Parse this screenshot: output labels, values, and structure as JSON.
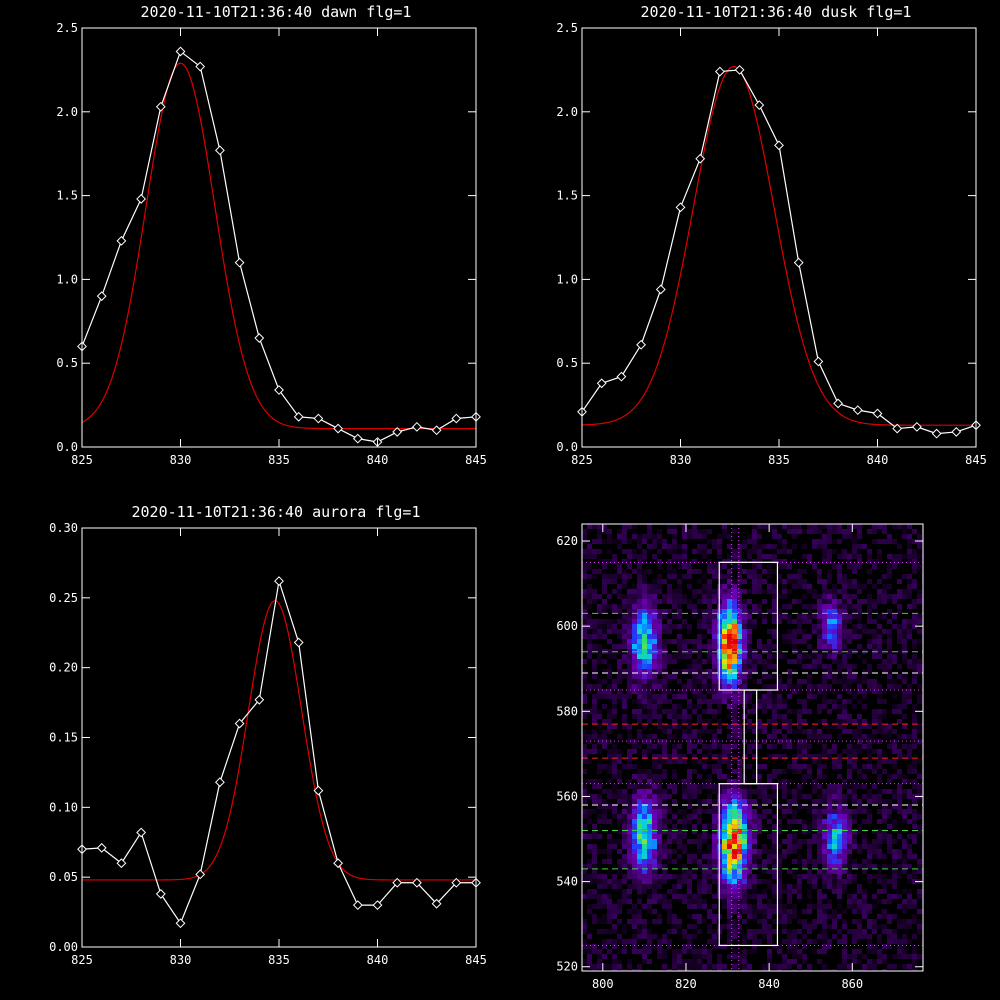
{
  "panels": [
    {
      "title": "2020-11-10T21:36:40 dawn flg=1",
      "chart_data": {
        "type": "line",
        "xlim": [
          825,
          845
        ],
        "ylim": [
          0.0,
          2.5
        ],
        "xticks": [
          825,
          830,
          835,
          840,
          845
        ],
        "yticks": [
          0.0,
          0.5,
          1.0,
          1.5,
          2.0,
          2.5
        ],
        "xtick_labels": [
          "825",
          "830",
          "835",
          "840",
          "845"
        ],
        "ytick_labels": [
          "0.0",
          "0.5",
          "1.0",
          "1.5",
          "2.0",
          "2.5"
        ],
        "series": [
          {
            "color": "#ffffff",
            "marker": "diamond",
            "x": [
              825,
              826,
              827,
              828,
              829,
              830,
              831,
              832,
              833,
              834,
              835,
              836,
              837,
              838,
              839,
              840,
              841,
              842,
              843,
              844,
              845
            ],
            "y": [
              0.6,
              0.9,
              1.23,
              1.48,
              2.03,
              2.36,
              2.27,
              1.77,
              1.1,
              0.65,
              0.34,
              0.18,
              0.17,
              0.11,
              0.05,
              0.03,
              0.09,
              0.12,
              0.1,
              0.17,
              0.18
            ]
          },
          {
            "color": "#dd0000",
            "model": "gaussian",
            "amplitude": 2.18,
            "center": 830.0,
            "sigma": 1.75,
            "offset": 0.11
          }
        ]
      }
    },
    {
      "title": "2020-11-10T21:36:40 dusk flg=1",
      "chart_data": {
        "type": "line",
        "xlim": [
          825,
          845
        ],
        "ylim": [
          0.0,
          2.5
        ],
        "xticks": [
          825,
          830,
          835,
          840,
          845
        ],
        "yticks": [
          0.0,
          0.5,
          1.0,
          1.5,
          2.0,
          2.5
        ],
        "xtick_labels": [
          "825",
          "830",
          "835",
          "840",
          "845"
        ],
        "ytick_labels": [
          "0.0",
          "0.5",
          "1.0",
          "1.5",
          "2.0",
          "2.5"
        ],
        "series": [
          {
            "color": "#ffffff",
            "marker": "diamond",
            "x": [
              825,
              826,
              827,
              828,
              829,
              830,
              831,
              832,
              833,
              834,
              835,
              836,
              837,
              838,
              839,
              840,
              841,
              842,
              843,
              844,
              845
            ],
            "y": [
              0.21,
              0.38,
              0.42,
              0.61,
              0.94,
              1.43,
              1.72,
              2.24,
              2.25,
              2.04,
              1.8,
              1.1,
              0.51,
              0.26,
              0.22,
              0.2,
              0.11,
              0.12,
              0.08,
              0.09,
              0.13
            ]
          },
          {
            "color": "#dd0000",
            "model": "gaussian",
            "amplitude": 2.14,
            "center": 832.7,
            "sigma": 2.05,
            "offset": 0.13
          }
        ]
      }
    },
    {
      "title": "2020-11-10T21:36:40 aurora flg=1",
      "chart_data": {
        "type": "line",
        "xlim": [
          825,
          845
        ],
        "ylim": [
          0.0,
          0.3
        ],
        "xticks": [
          825,
          830,
          835,
          840,
          845
        ],
        "yticks": [
          0.0,
          0.05,
          0.1,
          0.15,
          0.2,
          0.25,
          0.3
        ],
        "xtick_labels": [
          "825",
          "830",
          "835",
          "840",
          "845"
        ],
        "ytick_labels": [
          "0.00",
          "0.05",
          "0.10",
          "0.15",
          "0.20",
          "0.25",
          "0.30"
        ],
        "series": [
          {
            "color": "#ffffff",
            "marker": "diamond",
            "x": [
              825,
              826,
              827,
              828,
              829,
              830,
              831,
              832,
              833,
              834,
              835,
              836,
              837,
              838,
              839,
              840,
              841,
              842,
              843,
              844,
              845
            ],
            "y": [
              0.07,
              0.071,
              0.06,
              0.082,
              0.038,
              0.017,
              0.052,
              0.118,
              0.16,
              0.177,
              0.262,
              0.218,
              0.112,
              0.06,
              0.03,
              0.03,
              0.046,
              0.046,
              0.031,
              0.046,
              0.046
            ]
          },
          {
            "color": "#dd0000",
            "model": "gaussian",
            "amplitude": 0.2,
            "center": 834.8,
            "sigma": 1.35,
            "offset": 0.048
          }
        ]
      }
    },
    {
      "title": "",
      "chart_data": {
        "type": "heatmap",
        "xlim": [
          795,
          877
        ],
        "ylim": [
          519,
          624
        ],
        "xticks": [
          800,
          820,
          840,
          860
        ],
        "yticks": [
          520,
          540,
          560,
          580,
          600,
          620
        ],
        "xtick_labels": [
          "800",
          "820",
          "840",
          "860"
        ],
        "ytick_labels": [
          "520",
          "540",
          "560",
          "580",
          "600",
          "620"
        ],
        "colormap": [
          "#000000",
          "#3a0060",
          "#6a00b0",
          "#2040ff",
          "#00c8ff",
          "#30e070",
          "#e8e800",
          "#ff4000",
          "#e00000"
        ],
        "blobs": [
          {
            "x": 810.0,
            "y": 596.0,
            "sx": 2.2,
            "sy": 5.5,
            "amp": 0.58
          },
          {
            "x": 830.5,
            "y": 596.0,
            "sx": 2.0,
            "sy": 6.5,
            "amp": 0.95
          },
          {
            "x": 855.0,
            "y": 600.0,
            "sx": 1.6,
            "sy": 4.0,
            "amp": 0.4
          },
          {
            "x": 810.0,
            "y": 551.0,
            "sx": 2.2,
            "sy": 6.0,
            "amp": 0.58
          },
          {
            "x": 831.5,
            "y": 549.0,
            "sx": 2.3,
            "sy": 6.5,
            "amp": 0.92
          },
          {
            "x": 856.0,
            "y": 550.0,
            "sx": 2.0,
            "sy": 5.0,
            "amp": 0.45
          }
        ],
        "boxes": [
          {
            "x0": 828,
            "x1": 842,
            "y0": 585,
            "y1": 615
          },
          {
            "x0": 834,
            "x1": 837,
            "y0": 563,
            "y1": 585
          },
          {
            "x0": 828,
            "x1": 842,
            "y0": 525,
            "y1": 563
          }
        ],
        "hlines": [
          {
            "y": 615,
            "color": "#e040ff",
            "style": "dotted"
          },
          {
            "y": 603,
            "color": "#40d040",
            "style": "dashed"
          },
          {
            "y": 594,
            "color": "#40d040",
            "style": "dashed"
          },
          {
            "y": 589,
            "color": "#ffffff",
            "style": "dashed"
          },
          {
            "y": 585,
            "color": "#e040ff",
            "style": "dotted"
          },
          {
            "y": 577,
            "color": "#ff2020",
            "style": "dashed"
          },
          {
            "y": 573,
            "color": "#e040ff",
            "style": "dotted"
          },
          {
            "y": 569,
            "color": "#ff2020",
            "style": "dashed"
          },
          {
            "y": 563,
            "color": "#e040ff",
            "style": "dotted"
          },
          {
            "y": 558,
            "color": "#ffffff",
            "style": "dashed"
          },
          {
            "y": 552,
            "color": "#40d040",
            "style": "dashed"
          },
          {
            "y": 543,
            "color": "#40d040",
            "style": "dashed"
          },
          {
            "y": 525,
            "color": "#e040ff",
            "style": "dotted"
          }
        ],
        "vlines": [
          {
            "x": 831.0,
            "color": "#e040ff",
            "style": "dotted"
          },
          {
            "x": 832.7,
            "color": "#e040ff",
            "style": "dotted"
          }
        ]
      }
    }
  ]
}
